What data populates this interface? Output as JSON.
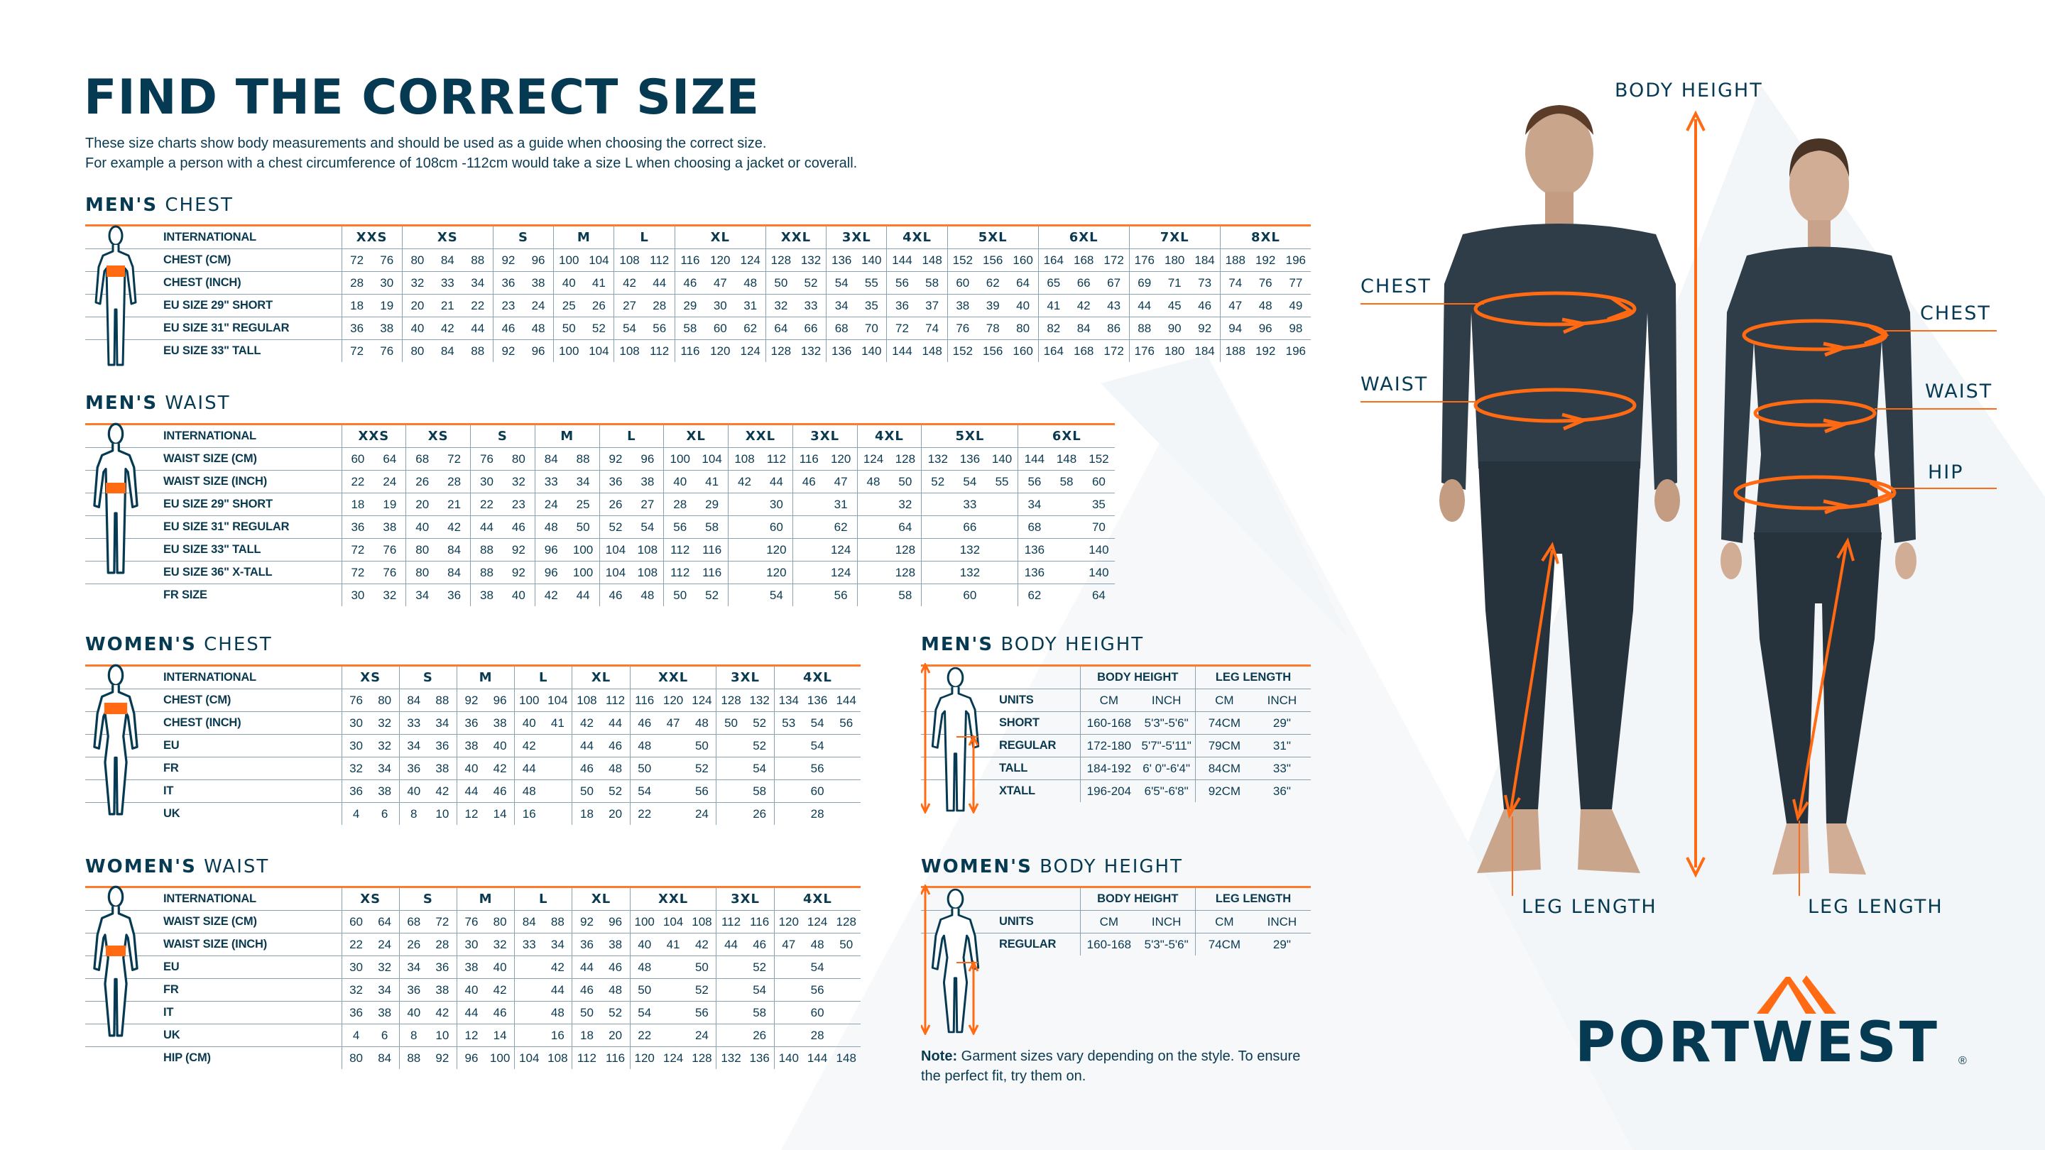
{
  "header": {
    "title": "FIND THE CORRECT SIZE",
    "intro_line1": "These size charts show body measurements and should be used as a guide when choosing the correct size.",
    "intro_line2": "For example a person with a chest circumference of 108cm -112cm would take a size L when choosing a jacket or coverall."
  },
  "colors": {
    "navy": "#063a52",
    "orange": "#ff6a13",
    "rule": "#8aa2b0"
  },
  "mens_chest": {
    "heading_bold": "MEN'S",
    "heading_rest": "CHEST",
    "header_label": "INTERNATIONAL",
    "groups": [
      {
        "label": "XXS",
        "span": 2
      },
      {
        "label": "XS",
        "span": 3
      },
      {
        "label": "S",
        "span": 2
      },
      {
        "label": "M",
        "span": 2
      },
      {
        "label": "L",
        "span": 2
      },
      {
        "label": "XL",
        "span": 3
      },
      {
        "label": "XXL",
        "span": 2
      },
      {
        "label": "3XL",
        "span": 2
      },
      {
        "label": "4XL",
        "span": 2
      },
      {
        "label": "5XL",
        "span": 3
      },
      {
        "label": "6XL",
        "span": 3
      },
      {
        "label": "7XL",
        "span": 3
      },
      {
        "label": "8XL",
        "span": 3
      }
    ],
    "rows": [
      {
        "label": "CHEST (CM)",
        "cells": [
          "72",
          "76",
          "80",
          "84",
          "88",
          "92",
          "96",
          "100",
          "104",
          "108",
          "112",
          "116",
          "120",
          "124",
          "128",
          "132",
          "136",
          "140",
          "144",
          "148",
          "152",
          "156",
          "160",
          "164",
          "168",
          "172",
          "176",
          "180",
          "184",
          "188",
          "192",
          "196"
        ]
      },
      {
        "label": "CHEST (INCH)",
        "cells": [
          "28",
          "30",
          "32",
          "33",
          "34",
          "36",
          "38",
          "40",
          "41",
          "42",
          "44",
          "46",
          "47",
          "48",
          "50",
          "52",
          "54",
          "55",
          "56",
          "58",
          "60",
          "62",
          "64",
          "65",
          "66",
          "67",
          "69",
          "71",
          "73",
          "74",
          "76",
          "77"
        ]
      },
      {
        "label": "EU SIZE 29\" SHORT",
        "cells": [
          "18",
          "19",
          "20",
          "21",
          "22",
          "23",
          "24",
          "25",
          "26",
          "27",
          "28",
          "29",
          "30",
          "31",
          "32",
          "33",
          "34",
          "35",
          "36",
          "37",
          "38",
          "39",
          "40",
          "41",
          "42",
          "43",
          "44",
          "45",
          "46",
          "47",
          "48",
          "49"
        ]
      },
      {
        "label": "EU SIZE 31\" REGULAR",
        "cells": [
          "36",
          "38",
          "40",
          "42",
          "44",
          "46",
          "48",
          "50",
          "52",
          "54",
          "56",
          "58",
          "60",
          "62",
          "64",
          "66",
          "68",
          "70",
          "72",
          "74",
          "76",
          "78",
          "80",
          "82",
          "84",
          "86",
          "88",
          "90",
          "92",
          "94",
          "96",
          "98"
        ]
      },
      {
        "label": "EU SIZE 33\" TALL",
        "cells": [
          "72",
          "76",
          "80",
          "84",
          "88",
          "92",
          "96",
          "100",
          "104",
          "108",
          "112",
          "116",
          "120",
          "124",
          "128",
          "132",
          "136",
          "140",
          "144",
          "148",
          "152",
          "156",
          "160",
          "164",
          "168",
          "172",
          "176",
          "180",
          "184",
          "188",
          "192",
          "196"
        ]
      }
    ]
  },
  "mens_waist": {
    "heading_bold": "MEN'S",
    "heading_rest": "WAIST",
    "header_label": "INTERNATIONAL",
    "groups": [
      {
        "label": "XXS",
        "span": 2
      },
      {
        "label": "XS",
        "span": 2
      },
      {
        "label": "S",
        "span": 2
      },
      {
        "label": "M",
        "span": 2
      },
      {
        "label": "L",
        "span": 2
      },
      {
        "label": "XL",
        "span": 2
      },
      {
        "label": "XXL",
        "span": 2
      },
      {
        "label": "3XL",
        "span": 2
      },
      {
        "label": "4XL",
        "span": 2
      },
      {
        "label": "5XL",
        "span": 3
      },
      {
        "label": "6XL",
        "span": 3
      }
    ],
    "rows": [
      {
        "label": "WAIST SIZE (CM)",
        "cells": [
          "60",
          "64",
          "68",
          "72",
          "76",
          "80",
          "84",
          "88",
          "92",
          "96",
          "100",
          "104",
          "108",
          "112",
          "116",
          "120",
          "124",
          "128",
          "132",
          "136",
          "140",
          "144",
          "148",
          "152"
        ]
      },
      {
        "label": "WAIST SIZE (INCH)",
        "cells": [
          "22",
          "24",
          "26",
          "28",
          "30",
          "32",
          "33",
          "34",
          "36",
          "38",
          "40",
          "41",
          "42",
          "44",
          "46",
          "47",
          "48",
          "50",
          "52",
          "54",
          "55",
          "56",
          "58",
          "60"
        ]
      },
      {
        "label": "EU SIZE 29\" SHORT",
        "cells": [
          "18",
          "19",
          "20",
          "21",
          "22",
          "23",
          "24",
          "25",
          "26",
          "27",
          "28",
          "29",
          "",
          "30",
          "",
          "31",
          "",
          "32",
          "",
          "33",
          "",
          "34",
          "",
          "35"
        ]
      },
      {
        "label": "EU SIZE 31\" REGULAR",
        "cells": [
          "36",
          "38",
          "40",
          "42",
          "44",
          "46",
          "48",
          "50",
          "52",
          "54",
          "56",
          "58",
          "",
          "60",
          "",
          "62",
          "",
          "64",
          "",
          "66",
          "",
          "68",
          "",
          "70"
        ]
      },
      {
        "label": "EU SIZE 33\" TALL",
        "cells": [
          "72",
          "76",
          "80",
          "84",
          "88",
          "92",
          "96",
          "100",
          "104",
          "108",
          "112",
          "116",
          "",
          "120",
          "",
          "124",
          "",
          "128",
          "",
          "132",
          "",
          "136",
          "",
          "140"
        ]
      },
      {
        "label": "EU SIZE 36\" X-TALL",
        "cells": [
          "72",
          "76",
          "80",
          "84",
          "88",
          "92",
          "96",
          "100",
          "104",
          "108",
          "112",
          "116",
          "",
          "120",
          "",
          "124",
          "",
          "128",
          "",
          "132",
          "",
          "136",
          "",
          "140"
        ]
      },
      {
        "label": "FR SIZE",
        "cells": [
          "30",
          "32",
          "34",
          "36",
          "38",
          "40",
          "42",
          "44",
          "46",
          "48",
          "50",
          "52",
          "",
          "54",
          "",
          "56",
          "",
          "58",
          "",
          "60",
          "",
          "62",
          "",
          "64"
        ]
      }
    ]
  },
  "womens_chest": {
    "heading_bold": "WOMEN'S",
    "heading_rest": "CHEST",
    "header_label": "INTERNATIONAL",
    "groups": [
      {
        "label": "XS",
        "span": 2
      },
      {
        "label": "S",
        "span": 2
      },
      {
        "label": "M",
        "span": 2
      },
      {
        "label": "L",
        "span": 2
      },
      {
        "label": "XL",
        "span": 2
      },
      {
        "label": "XXL",
        "span": 3
      },
      {
        "label": "3XL",
        "span": 2
      },
      {
        "label": "4XL",
        "span": 3
      }
    ],
    "rows": [
      {
        "label": "CHEST (CM)",
        "cells": [
          "76",
          "80",
          "84",
          "88",
          "92",
          "96",
          "100",
          "104",
          "108",
          "112",
          "116",
          "120",
          "124",
          "128",
          "132",
          "134",
          "136",
          "144"
        ]
      },
      {
        "label": "CHEST (INCH)",
        "cells": [
          "30",
          "32",
          "33",
          "34",
          "36",
          "38",
          "40",
          "41",
          "42",
          "44",
          "46",
          "47",
          "48",
          "50",
          "52",
          "53",
          "54",
          "56"
        ]
      },
      {
        "label": "EU",
        "cells": [
          "30",
          "32",
          "34",
          "36",
          "38",
          "40",
          "42",
          "",
          "44",
          "46",
          "48",
          "",
          "50",
          "",
          "52",
          "",
          "54",
          ""
        ]
      },
      {
        "label": "FR",
        "cells": [
          "32",
          "34",
          "36",
          "38",
          "40",
          "42",
          "44",
          "",
          "46",
          "48",
          "50",
          "",
          "52",
          "",
          "54",
          "",
          "56",
          ""
        ]
      },
      {
        "label": "IT",
        "cells": [
          "36",
          "38",
          "40",
          "42",
          "44",
          "46",
          "48",
          "",
          "50",
          "52",
          "54",
          "",
          "56",
          "",
          "58",
          "",
          "60",
          ""
        ]
      },
      {
        "label": "UK",
        "cells": [
          "4",
          "6",
          "8",
          "10",
          "12",
          "14",
          "16",
          "",
          "18",
          "20",
          "22",
          "",
          "24",
          "",
          "26",
          "",
          "28",
          ""
        ]
      }
    ]
  },
  "womens_waist": {
    "heading_bold": "WOMEN'S",
    "heading_rest": "WAIST",
    "header_label": "INTERNATIONAL",
    "groups": [
      {
        "label": "XS",
        "span": 2
      },
      {
        "label": "S",
        "span": 2
      },
      {
        "label": "M",
        "span": 2
      },
      {
        "label": "L",
        "span": 2
      },
      {
        "label": "XL",
        "span": 2
      },
      {
        "label": "XXL",
        "span": 3
      },
      {
        "label": "3XL",
        "span": 2
      },
      {
        "label": "4XL",
        "span": 3
      }
    ],
    "rows": [
      {
        "label": "WAIST SIZE (CM)",
        "cells": [
          "60",
          "64",
          "68",
          "72",
          "76",
          "80",
          "84",
          "88",
          "92",
          "96",
          "100",
          "104",
          "108",
          "112",
          "116",
          "120",
          "124",
          "128"
        ]
      },
      {
        "label": "WAIST SIZE (INCH)",
        "cells": [
          "22",
          "24",
          "26",
          "28",
          "30",
          "32",
          "33",
          "34",
          "36",
          "38",
          "40",
          "41",
          "42",
          "44",
          "46",
          "47",
          "48",
          "50"
        ]
      },
      {
        "label": "EU",
        "cells": [
          "30",
          "32",
          "34",
          "36",
          "38",
          "40",
          "",
          "42",
          "44",
          "46",
          "48",
          "",
          "50",
          "",
          "52",
          "",
          "54",
          ""
        ]
      },
      {
        "label": "FR",
        "cells": [
          "32",
          "34",
          "36",
          "38",
          "40",
          "42",
          "",
          "44",
          "46",
          "48",
          "50",
          "",
          "52",
          "",
          "54",
          "",
          "56",
          ""
        ]
      },
      {
        "label": "IT",
        "cells": [
          "36",
          "38",
          "40",
          "42",
          "44",
          "46",
          "",
          "48",
          "50",
          "52",
          "54",
          "",
          "56",
          "",
          "58",
          "",
          "60",
          ""
        ]
      },
      {
        "label": "UK",
        "cells": [
          "4",
          "6",
          "8",
          "10",
          "12",
          "14",
          "",
          "16",
          "18",
          "20",
          "22",
          "",
          "24",
          "",
          "26",
          "",
          "28",
          ""
        ]
      },
      {
        "label": "HIP (CM)",
        "cells": [
          "80",
          "84",
          "88",
          "92",
          "96",
          "100",
          "104",
          "108",
          "112",
          "116",
          "120",
          "124",
          "128",
          "132",
          "136",
          "140",
          "144",
          "148"
        ]
      }
    ]
  },
  "mens_body_height": {
    "heading_bold": "MEN'S",
    "heading_rest": "BODY HEIGHT",
    "header_label": "",
    "groups": [
      {
        "label": "BODY HEIGHT",
        "span": 2
      },
      {
        "label": "LEG LENGTH",
        "span": 2
      }
    ],
    "rows": [
      {
        "label": "UNITS",
        "cells": [
          "CM",
          "INCH",
          "CM",
          "INCH"
        ]
      },
      {
        "label": "SHORT",
        "cells": [
          "160-168",
          "5'3\"-5'6\"",
          "74CM",
          "29\""
        ]
      },
      {
        "label": "REGULAR",
        "cells": [
          "172-180",
          "5'7\"-5'11\"",
          "79CM",
          "31\""
        ]
      },
      {
        "label": "TALL",
        "cells": [
          "184-192",
          "6' 0\"-6'4\"",
          "84CM",
          "33\""
        ]
      },
      {
        "label": "XTALL",
        "cells": [
          "196-204",
          "6'5\"-6'8\"",
          "92CM",
          "36\""
        ]
      }
    ]
  },
  "womens_body_height": {
    "heading_bold": "WOMEN'S",
    "heading_rest": "BODY HEIGHT",
    "header_label": "",
    "groups": [
      {
        "label": "BODY HEIGHT",
        "span": 2
      },
      {
        "label": "LEG LENGTH",
        "span": 2
      }
    ],
    "rows": [
      {
        "label": "UNITS",
        "cells": [
          "CM",
          "INCH",
          "CM",
          "INCH"
        ]
      },
      {
        "label": "REGULAR",
        "cells": [
          "160-168",
          "5'3\"-5'6\"",
          "74CM",
          "29\""
        ]
      }
    ]
  },
  "note": {
    "bold": "Note:",
    "text": " Garment sizes vary depending on the style. To ensure the perfect fit, try them on."
  },
  "models": {
    "body_height": "BODY HEIGHT",
    "male_chest": "CHEST",
    "male_waist": "WAIST",
    "female_chest": "CHEST",
    "female_waist": "WAIST",
    "female_hip": "HIP",
    "male_leg_length": "LEG LENGTH",
    "female_leg_length": "LEG LENGTH"
  },
  "logo": {
    "text": "PORTWEST",
    "registered": "®"
  }
}
